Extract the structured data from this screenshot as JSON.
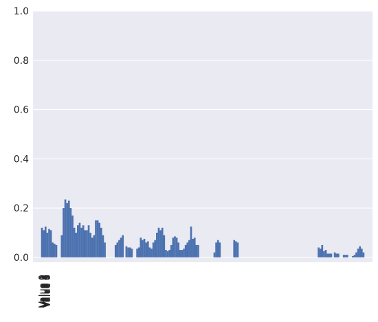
{
  "chart_data": {
    "type": "bar",
    "style": "seaborn-darkgrid",
    "title": "",
    "xlabel": "",
    "ylabel": "",
    "ylim": [
      0,
      1.0
    ],
    "yticks": [
      "0.0",
      "0.2",
      "0.4",
      "0.6",
      "0.8",
      "1.0"
    ],
    "grid": true,
    "legend": "none",
    "colors": {
      "bar": "#4c72b0",
      "axes_bg": "#eaeaf2",
      "grid": "#ffffff",
      "text": "#262626"
    },
    "xtick_labels": [
      "Value 0",
      "Value 1",
      "Value 2",
      "Value 3",
      "Value 4",
      "Value 5",
      "Value 6",
      "Value 7",
      "Value 8"
    ],
    "bars": [
      [
        0.0,
        0.12
      ],
      [
        0.5,
        0.11
      ],
      [
        1.0,
        0.125
      ],
      [
        1.5,
        0.1
      ],
      [
        2.0,
        0.115
      ],
      [
        2.5,
        0.11
      ],
      [
        3.0,
        0.06
      ],
      [
        3.5,
        0.055
      ],
      [
        4.0,
        0.05
      ],
      [
        5.5,
        0.09
      ],
      [
        6.0,
        0.2
      ],
      [
        6.5,
        0.235
      ],
      [
        7.0,
        0.22
      ],
      [
        7.5,
        0.23
      ],
      [
        8.0,
        0.2
      ],
      [
        8.5,
        0.17
      ],
      [
        9.0,
        0.12
      ],
      [
        9.5,
        0.1
      ],
      [
        10.0,
        0.13
      ],
      [
        10.5,
        0.14
      ],
      [
        11.0,
        0.12
      ],
      [
        11.5,
        0.13
      ],
      [
        12.0,
        0.11
      ],
      [
        12.5,
        0.11
      ],
      [
        13.0,
        0.13
      ],
      [
        13.5,
        0.1
      ],
      [
        14.0,
        0.08
      ],
      [
        14.5,
        0.09
      ],
      [
        15.0,
        0.15
      ],
      [
        15.5,
        0.15
      ],
      [
        16.0,
        0.14
      ],
      [
        16.5,
        0.12
      ],
      [
        17.0,
        0.09
      ],
      [
        17.5,
        0.06
      ],
      [
        20.5,
        0.05
      ],
      [
        21.0,
        0.06
      ],
      [
        21.5,
        0.07
      ],
      [
        22.0,
        0.08
      ],
      [
        22.5,
        0.09
      ],
      [
        23.5,
        0.045
      ],
      [
        24.0,
        0.04
      ],
      [
        24.5,
        0.04
      ],
      [
        25.0,
        0.035
      ],
      [
        26.5,
        0.035
      ],
      [
        27.0,
        0.04
      ],
      [
        27.5,
        0.08
      ],
      [
        28.0,
        0.07
      ],
      [
        28.5,
        0.075
      ],
      [
        29.0,
        0.06
      ],
      [
        29.5,
        0.065
      ],
      [
        30.0,
        0.04
      ],
      [
        30.5,
        0.035
      ],
      [
        31.0,
        0.06
      ],
      [
        31.5,
        0.07
      ],
      [
        32.0,
        0.1
      ],
      [
        32.5,
        0.12
      ],
      [
        33.0,
        0.11
      ],
      [
        33.5,
        0.12
      ],
      [
        34.0,
        0.09
      ],
      [
        34.5,
        0.03
      ],
      [
        35.0,
        0.025
      ],
      [
        35.5,
        0.03
      ],
      [
        36.0,
        0.05
      ],
      [
        36.5,
        0.08
      ],
      [
        37.0,
        0.085
      ],
      [
        37.5,
        0.08
      ],
      [
        38.0,
        0.06
      ],
      [
        38.5,
        0.03
      ],
      [
        39.0,
        0.03
      ],
      [
        39.5,
        0.035
      ],
      [
        40.0,
        0.05
      ],
      [
        40.5,
        0.06
      ],
      [
        41.0,
        0.07
      ],
      [
        41.5,
        0.125
      ],
      [
        42.0,
        0.075
      ],
      [
        42.5,
        0.08
      ],
      [
        43.0,
        0.05
      ],
      [
        43.5,
        0.05
      ],
      [
        48.0,
        0.02
      ],
      [
        48.5,
        0.06
      ],
      [
        49.0,
        0.07
      ],
      [
        49.5,
        0.06
      ],
      [
        53.5,
        0.07
      ],
      [
        54.0,
        0.065
      ],
      [
        54.5,
        0.06
      ],
      [
        77.0,
        0.04
      ],
      [
        77.5,
        0.035
      ],
      [
        78.0,
        0.05
      ],
      [
        78.5,
        0.025
      ],
      [
        79.0,
        0.03
      ],
      [
        79.5,
        0.015
      ],
      [
        80.0,
        0.015
      ],
      [
        80.5,
        0.015
      ],
      [
        81.5,
        0.02
      ],
      [
        82.0,
        0.015
      ],
      [
        82.5,
        0.015
      ],
      [
        84.0,
        0.01
      ],
      [
        84.5,
        0.01
      ],
      [
        85.0,
        0.01
      ],
      [
        86.5,
        0.005
      ],
      [
        87.0,
        0.01
      ],
      [
        87.5,
        0.02
      ],
      [
        88.0,
        0.035
      ],
      [
        88.5,
        0.045
      ],
      [
        89.0,
        0.035
      ],
      [
        89.5,
        0.02
      ]
    ],
    "xlim": [
      -2.5,
      92
    ]
  }
}
